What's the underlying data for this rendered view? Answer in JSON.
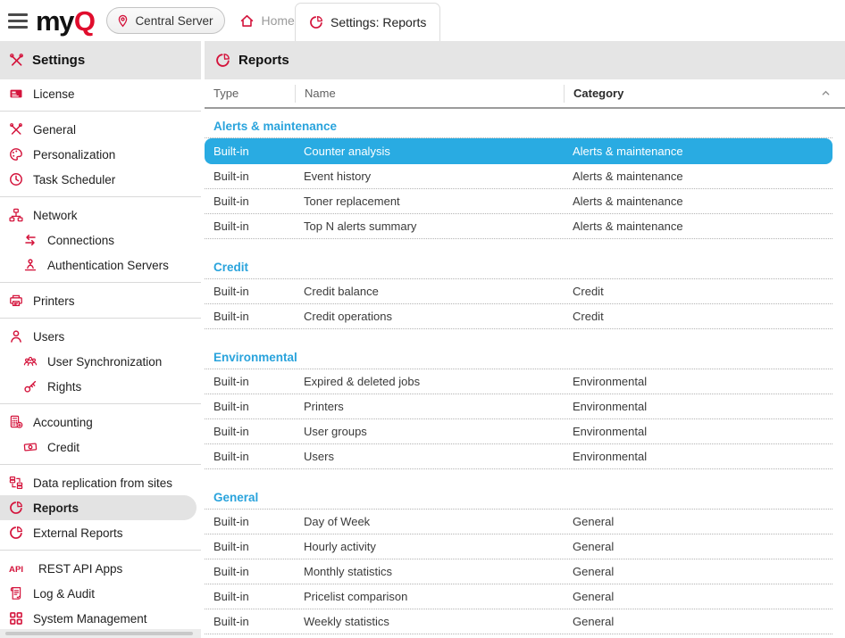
{
  "topbar": {
    "logo_my": "my",
    "logo_q": "Q",
    "server_label": "Central Server",
    "home_label": "Home",
    "active_tab_label": "Settings: Reports"
  },
  "sidebar": {
    "title": "Settings",
    "groups": [
      {
        "items": [
          {
            "label": "License",
            "icon": "license-icon"
          }
        ]
      },
      {
        "items": [
          {
            "label": "General",
            "icon": "tools-icon"
          },
          {
            "label": "Personalization",
            "icon": "palette-icon"
          },
          {
            "label": "Task Scheduler",
            "icon": "clock-icon"
          }
        ]
      },
      {
        "items": [
          {
            "label": "Network",
            "icon": "network-icon"
          },
          {
            "label": "Connections",
            "icon": "arrows-swap-icon",
            "indent": true
          },
          {
            "label": "Authentication Servers",
            "icon": "auth-person-icon",
            "indent": true
          }
        ]
      },
      {
        "items": [
          {
            "label": "Printers",
            "icon": "printer-icon"
          }
        ]
      },
      {
        "items": [
          {
            "label": "Users",
            "icon": "user-icon"
          },
          {
            "label": "User Synchronization",
            "icon": "user-group-icon",
            "indent": true
          },
          {
            "label": "Rights",
            "icon": "key-icon",
            "indent": true
          }
        ]
      },
      {
        "items": [
          {
            "label": "Accounting",
            "icon": "calculator-icon"
          },
          {
            "label": "Credit",
            "icon": "banknote-icon",
            "indent": true
          }
        ]
      },
      {
        "items": [
          {
            "label": "Data replication from sites",
            "icon": "replication-icon"
          },
          {
            "label": "Reports",
            "icon": "pie-chart-icon",
            "selected": true
          },
          {
            "label": "External Reports",
            "icon": "pie-chart-icon"
          }
        ]
      },
      {
        "items": [
          {
            "label": "REST API Apps",
            "icon": "api-icon"
          },
          {
            "label": "Log & Audit",
            "icon": "scroll-icon"
          },
          {
            "label": "System Management",
            "icon": "grid-icon"
          }
        ]
      }
    ]
  },
  "main": {
    "title": "Reports",
    "table": {
      "columns": [
        "Type",
        "Name",
        "Category"
      ],
      "sorted_by": "Category",
      "sort_direction": "ascending",
      "groups": [
        {
          "header": "Alerts & maintenance",
          "rows": [
            {
              "type": "Built-in",
              "name": "Counter analysis",
              "category": "Alerts & maintenance",
              "selected": true
            },
            {
              "type": "Built-in",
              "name": "Event history",
              "category": "Alerts & maintenance"
            },
            {
              "type": "Built-in",
              "name": "Toner replacement",
              "category": "Alerts & maintenance"
            },
            {
              "type": "Built-in",
              "name": "Top N alerts summary",
              "category": "Alerts & maintenance"
            }
          ]
        },
        {
          "header": "Credit",
          "rows": [
            {
              "type": "Built-in",
              "name": "Credit balance",
              "category": "Credit"
            },
            {
              "type": "Built-in",
              "name": "Credit operations",
              "category": "Credit"
            }
          ]
        },
        {
          "header": "Environmental",
          "rows": [
            {
              "type": "Built-in",
              "name": "Expired & deleted jobs",
              "category": "Environmental"
            },
            {
              "type": "Built-in",
              "name": "Printers",
              "category": "Environmental"
            },
            {
              "type": "Built-in",
              "name": "User groups",
              "category": "Environmental"
            },
            {
              "type": "Built-in",
              "name": "Users",
              "category": "Environmental"
            }
          ]
        },
        {
          "header": "General",
          "rows": [
            {
              "type": "Built-in",
              "name": "Day of Week",
              "category": "General"
            },
            {
              "type": "Built-in",
              "name": "Hourly activity",
              "category": "General"
            },
            {
              "type": "Built-in",
              "name": "Monthly statistics",
              "category": "General"
            },
            {
              "type": "Built-in",
              "name": "Pricelist comparison",
              "category": "General"
            },
            {
              "type": "Built-in",
              "name": "Weekly statistics",
              "category": "General"
            }
          ]
        }
      ]
    }
  },
  "colors": {
    "brand_red": "#d4143c",
    "logo_red": "#e00d2d",
    "selected_row_bg": "#29abe2",
    "group_title_blue": "#29a3dc",
    "header_bar_gray": "#e5e5e5",
    "sidebar_selected_bg": "#e3e3e3"
  }
}
